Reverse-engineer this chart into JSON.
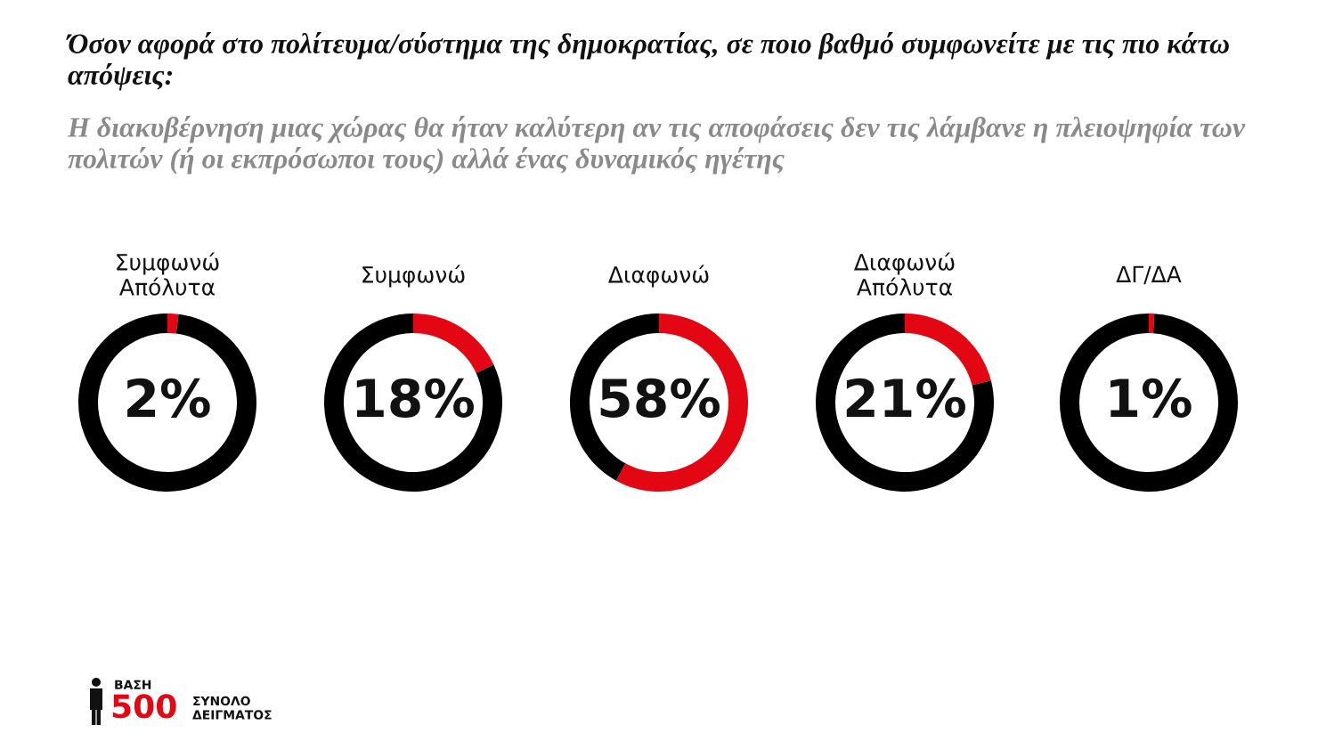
{
  "chart_data": [
    {
      "type": "other",
      "title": "Όσον αφορά στο πολίτευμα/σύστημα της δημοκρατίας, σε ποιο βαθμό συμφωνείτε με τις πιο κάτω απόψεις:",
      "subtitle": "Η διακυβέρνηση μιας χώρας θα ήταν καλύτερη αν τις αποφάσεις δεν τις λάμβανε η πλειοψηφία των πολιτών (ή οι εκπρόσωποι τους) αλλά ένας δυναμικός ηγέτης",
      "annotations": [
        "ΒΑΣΗ",
        "500",
        "ΣΥΝΟΛΟ ΔΕΙΓΜΑΤΟΣ"
      ]
    },
    {
      "type": "donut",
      "title": "Συμφωνώ\nΑπόλυτα",
      "categories": [
        null,
        null
      ],
      "values": [
        2,
        98
      ],
      "colors": [
        "#e30613",
        "#000000"
      ],
      "value_labels": [
        "2%",
        null
      ]
    },
    {
      "type": "donut",
      "title": "Συμφωνώ",
      "categories": [
        null,
        null
      ],
      "values": [
        18,
        82
      ],
      "colors": [
        "#e30613",
        "#000000"
      ],
      "value_labels": [
        "18%",
        null
      ]
    },
    {
      "type": "donut",
      "title": "Διαφωνώ",
      "categories": [
        null,
        null
      ],
      "values": [
        58,
        42
      ],
      "colors": [
        "#e30613",
        "#000000"
      ],
      "value_labels": [
        "58%",
        null
      ]
    },
    {
      "type": "donut",
      "title": "Διαφωνώ\nΑπόλυτα",
      "categories": [
        null,
        null
      ],
      "values": [
        21,
        79
      ],
      "colors": [
        "#e30613",
        "#000000"
      ],
      "value_labels": [
        "21%",
        null
      ]
    },
    {
      "type": "donut",
      "title": "ΔΓ/ΔΑ",
      "categories": [
        null,
        null
      ],
      "values": [
        1,
        99
      ],
      "colors": [
        "#e30613",
        "#000000"
      ],
      "value_labels": [
        "1%",
        null
      ]
    }
  ]
}
